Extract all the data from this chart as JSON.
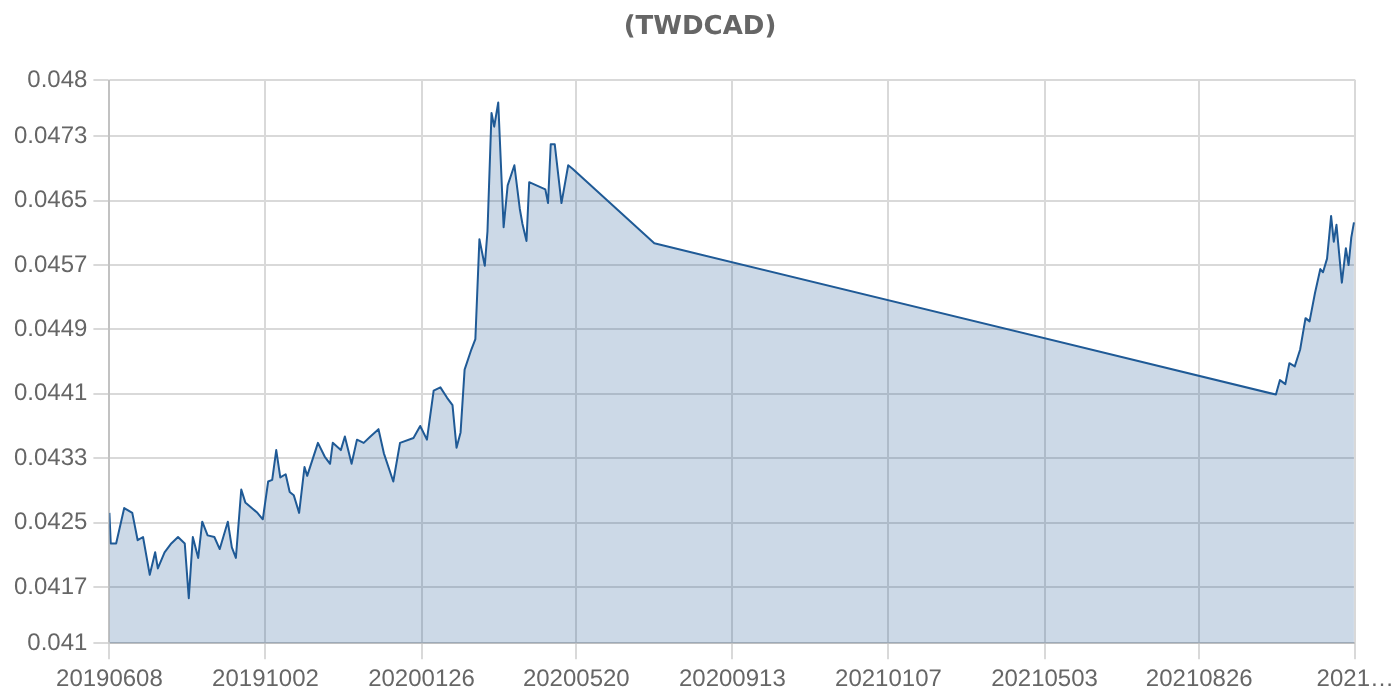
{
  "chart_data": {
    "type": "area",
    "title": "(TWDCAD)",
    "x": [
      "2019-06-08",
      "2019-06-09",
      "2019-06-13",
      "2019-06-19",
      "2019-06-25",
      "2019-06-29",
      "2019-07-03",
      "2019-07-08",
      "2019-07-12",
      "2019-07-14",
      "2019-07-19",
      "2019-07-24",
      "2019-07-29",
      "2019-08-03",
      "2019-08-06",
      "2019-08-09",
      "2019-08-13",
      "2019-08-16",
      "2019-08-20",
      "2019-08-25",
      "2019-08-29",
      "2019-09-04",
      "2019-09-07",
      "2019-09-10",
      "2019-09-14",
      "2019-09-17",
      "2019-09-26",
      "2019-09-30",
      "2019-10-04",
      "2019-10-07",
      "2019-10-10",
      "2019-10-13",
      "2019-10-17",
      "2019-10-20",
      "2019-10-23",
      "2019-10-27",
      "2019-10-31",
      "2019-11-02",
      "2019-11-10",
      "2019-11-15",
      "2019-11-19",
      "2019-11-21",
      "2019-11-27",
      "2019-11-30",
      "2019-12-05",
      "2019-12-09",
      "2019-12-14",
      "2019-12-19",
      "2019-12-25",
      "2019-12-29",
      "2020-01-05",
      "2020-01-10",
      "2020-01-20",
      "2020-01-25",
      "2020-01-30",
      "2020-02-04",
      "2020-02-09",
      "2020-02-14",
      "2020-02-18",
      "2020-02-21",
      "2020-02-24",
      "2020-02-27",
      "2020-03-03",
      "2020-03-06",
      "2020-03-09",
      "2020-03-13",
      "2020-03-15",
      "2020-03-18",
      "2020-03-20",
      "2020-03-23",
      "2020-03-27",
      "2020-03-30",
      "2020-04-04",
      "2020-04-08",
      "2020-04-10",
      "2020-04-13",
      "2020-04-15",
      "2020-04-27",
      "2020-04-29",
      "2020-05-01",
      "2020-05-04",
      "2020-05-09",
      "2020-05-14",
      "2020-05-17",
      "2020-07-17",
      "2021-10-22",
      "2021-10-25",
      "2021-10-29",
      "2021-11-01",
      "2021-11-05",
      "2021-11-09",
      "2021-11-13",
      "2021-11-16",
      "2021-11-20",
      "2021-11-24",
      "2021-11-26",
      "2021-11-29",
      "2021-12-02",
      "2021-12-04",
      "2021-12-06",
      "2021-12-10",
      "2021-12-13",
      "2021-12-15",
      "2021-12-17",
      "2021-12-19"
    ],
    "series": [
      {
        "color": "#1f5a96",
        "values": [
          0.04262,
          0.04224,
          0.04224,
          0.04268,
          0.04262,
          0.04228,
          0.04232,
          0.04185,
          0.04213,
          0.04193,
          0.04213,
          0.04224,
          0.04232,
          0.04224,
          0.04156,
          0.04232,
          0.04206,
          0.04251,
          0.04234,
          0.04232,
          0.04217,
          0.04251,
          0.04219,
          0.04206,
          0.04291,
          0.04275,
          0.04262,
          0.04254,
          0.04301,
          0.04303,
          0.0434,
          0.04306,
          0.0431,
          0.04288,
          0.04284,
          0.04262,
          0.04319,
          0.04308,
          0.04349,
          0.04332,
          0.04323,
          0.04349,
          0.0434,
          0.04357,
          0.04323,
          0.04353,
          0.04349,
          0.04357,
          0.04366,
          0.04336,
          0.04301,
          0.04349,
          0.04355,
          0.0437,
          0.04353,
          0.04414,
          0.04418,
          0.04405,
          0.04396,
          0.04343,
          0.04362,
          0.0444,
          0.04465,
          0.04478,
          0.04602,
          0.04569,
          0.04612,
          0.04759,
          0.04742,
          0.04772,
          0.04617,
          0.04669,
          0.04694,
          0.0464,
          0.04621,
          0.046,
          0.04673,
          0.04664,
          0.04647,
          0.0472,
          0.0472,
          0.04647,
          0.04694,
          0.0469,
          0.04597,
          0.04409,
          0.04427,
          0.04422,
          0.04448,
          0.04444,
          0.04465,
          0.04504,
          0.045,
          0.04535,
          0.04565,
          0.04561,
          0.04578,
          0.04631,
          0.04599,
          0.0462,
          0.04548,
          0.04591,
          0.0457,
          0.04604,
          0.04623
        ]
      }
    ],
    "xlim": [
      "2019-06-08",
      "2021-12-20"
    ],
    "xticks": [
      {
        "value": "2019-06-08",
        "label": "20190608"
      },
      {
        "value": "2019-10-02",
        "label": "20191002"
      },
      {
        "value": "2020-01-26",
        "label": "20200126"
      },
      {
        "value": "2020-05-20",
        "label": "20200520"
      },
      {
        "value": "2020-09-13",
        "label": "20200913"
      },
      {
        "value": "2021-01-07",
        "label": "20210107"
      },
      {
        "value": "2021-05-03",
        "label": "20210503"
      },
      {
        "value": "2021-08-26",
        "label": "20210826"
      },
      {
        "value": "2021-12-20",
        "label": "2021…"
      }
    ],
    "ylim": [
      0.041,
      0.048
    ],
    "yticks": [
      0.041,
      0.0417,
      0.0425,
      0.0433,
      0.0441,
      0.0449,
      0.0457,
      0.0465,
      0.0473,
      0.048
    ],
    "grid": true,
    "legend": false,
    "marker": "none",
    "line_style": "solid"
  }
}
